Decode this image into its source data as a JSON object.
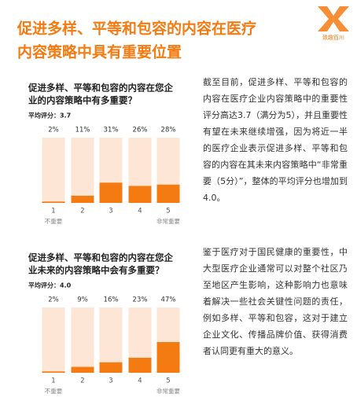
{
  "header": {
    "title_lines": [
      "促进多样、平等和包容的内容在医疗",
      "内容策略中具有重要位置"
    ],
    "logo": "致趣百川"
  },
  "chart_data": [
    {
      "type": "bar",
      "title_lines": [
        "促进多样、平等和包容的内容在您企",
        "业的内容策略中有多重要？"
      ],
      "subtitle": "平均评分：3.7",
      "categories": [
        "1",
        "2",
        "3",
        "4",
        "5"
      ],
      "values": [
        2,
        11,
        31,
        26,
        28
      ],
      "value_labels": [
        "2%",
        "11%",
        "31%",
        "26%",
        "28%"
      ],
      "low_label": "不重要",
      "high_label": "非常重要",
      "ylim": [
        0,
        100
      ],
      "color": "#f47a12",
      "track_color": "#fde6d6"
    },
    {
      "type": "bar",
      "title_lines": [
        "促进多样、平等和包容的内容在您企",
        "业未来的内容策略中会有多重要？"
      ],
      "subtitle": "平均评分：4.0",
      "categories": [
        "1",
        "2",
        "3",
        "4",
        "5"
      ],
      "values": [
        2,
        9,
        16,
        23,
        47
      ],
      "value_labels": [
        "2%",
        "9%",
        "16%",
        "23%",
        "47%"
      ],
      "low_label": "不重要",
      "high_label": "非常重要",
      "ylim": [
        0,
        100
      ],
      "color": "#f47a12",
      "track_color": "#fde6d6"
    }
  ],
  "body": {
    "paragraphs": [
      "截至目前，促进多样、平等和包容的内容在医疗企业内容策略中的重要性评分高达3.7（满分为5），并且重要性有望在未来继续增强，因为将近一半的医疗企业表示促进多样、平等和包容的内容在其未来内容策略中“非常重要（5分）”，整体的平均评分也增加到4.0。",
      "鉴于医疗对于国民健康的重要性，中大型医疗企业通常可以对整个社区乃至地区产生影响，这种影响力也意味着解决一些社会关键性问题的责任，例如多样、平等和包容，这对于建立企业文化、传播品牌价值、获得消费者认同更有重大的意义。"
    ]
  }
}
